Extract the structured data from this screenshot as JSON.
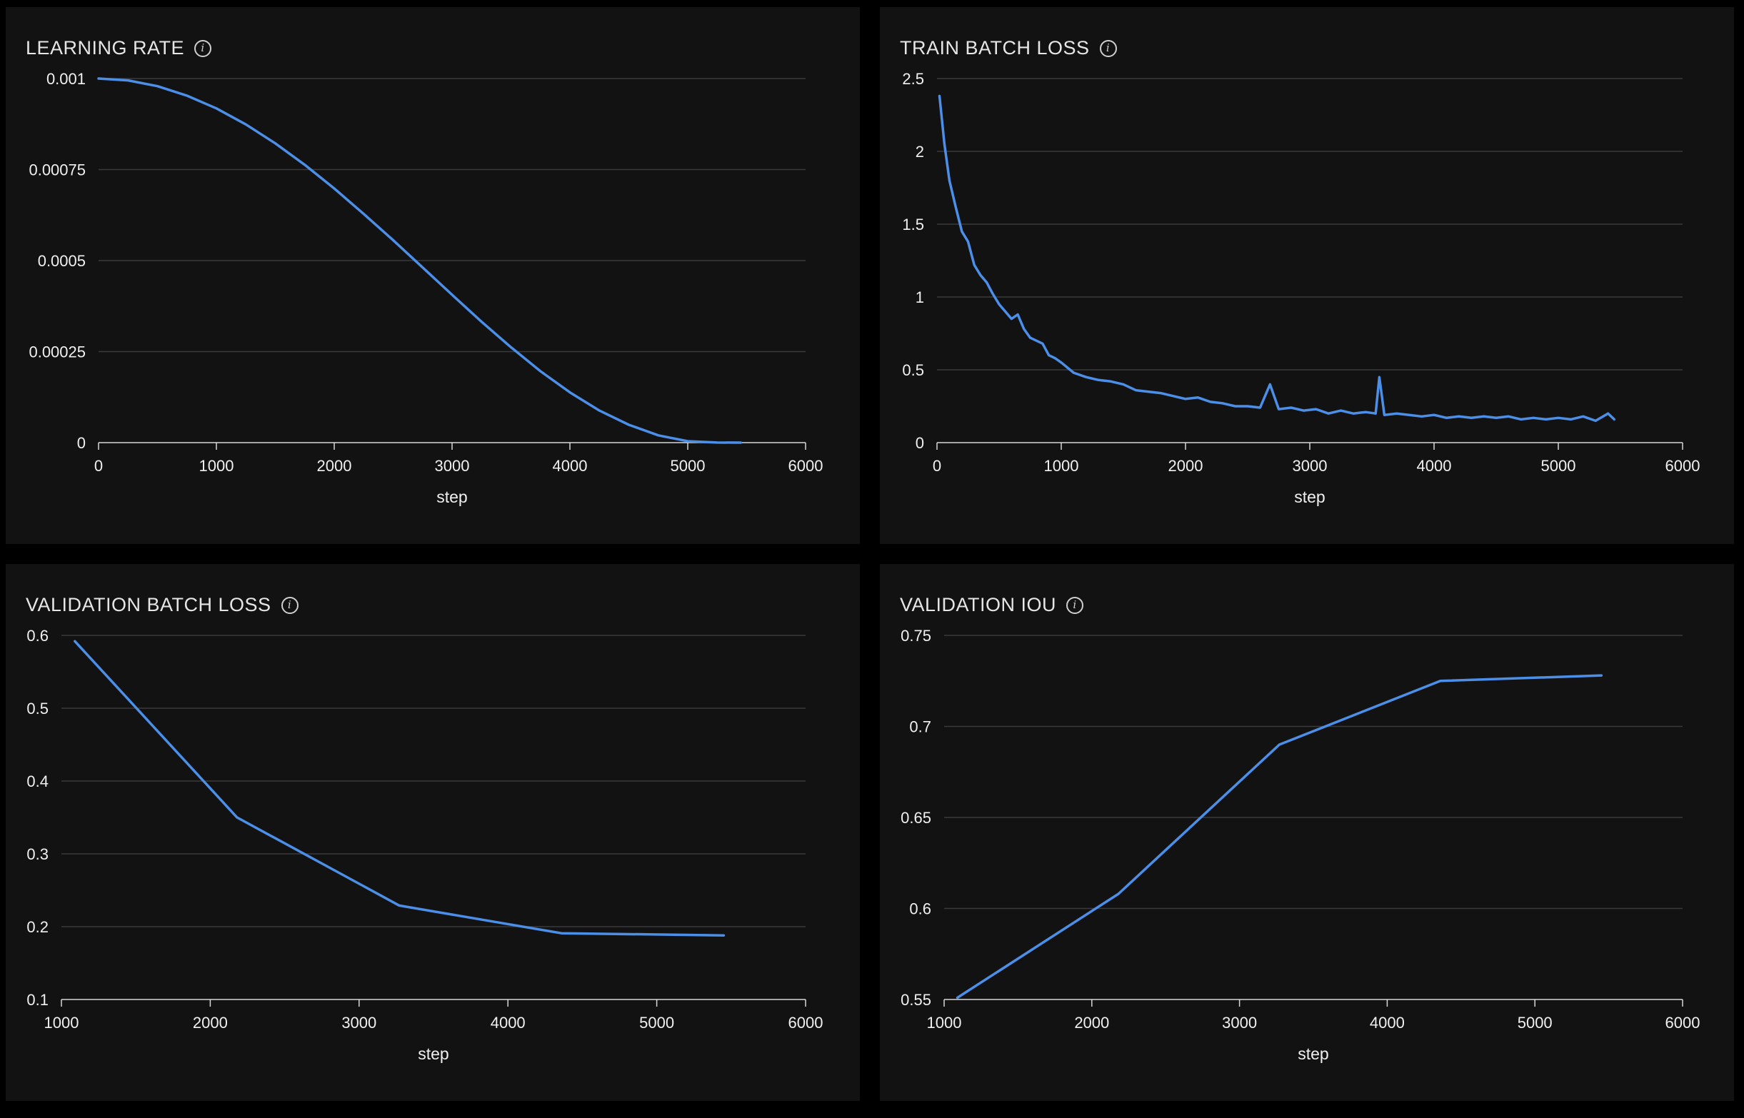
{
  "series_color": "#4b8fe8",
  "chart_data": [
    {
      "type": "line",
      "title": "LEARNING RATE",
      "xlabel": "step",
      "ylabel": "",
      "xlim": [
        0,
        6000
      ],
      "ylim": [
        0,
        0.001
      ],
      "xticks": [
        0,
        1000,
        2000,
        3000,
        4000,
        5000,
        6000
      ],
      "yticks": [
        0,
        0.00025,
        0.0005,
        0.00075,
        0.001
      ],
      "grid": true,
      "series": [
        {
          "x": [
            0,
            250,
            500,
            750,
            1000,
            1250,
            1500,
            1750,
            2000,
            2250,
            2500,
            2750,
            3000,
            3250,
            3500,
            3750,
            4000,
            4250,
            4500,
            4750,
            5000,
            5250,
            5450
          ],
          "y": [
            0.001,
            0.000995,
            0.000979,
            0.000953,
            0.000918,
            0.000874,
            0.000822,
            0.000763,
            0.000698,
            0.000628,
            0.000556,
            0.000481,
            0.000406,
            0.000332,
            0.000262,
            0.000196,
            0.000138,
            8.8e-05,
            4.9e-05,
            2e-05,
            4e-06,
            2e-07,
            0
          ]
        }
      ]
    },
    {
      "type": "line",
      "title": "TRAIN BATCH LOSS",
      "xlabel": "step",
      "ylabel": "",
      "xlim": [
        0,
        6000
      ],
      "ylim": [
        0,
        2.5
      ],
      "xticks": [
        0,
        1000,
        2000,
        3000,
        4000,
        5000,
        6000
      ],
      "yticks": [
        0,
        0.5,
        1,
        1.5,
        2,
        2.5
      ],
      "grid": true,
      "series": [
        {
          "x": [
            20,
            60,
            100,
            150,
            200,
            250,
            300,
            350,
            400,
            450,
            500,
            550,
            600,
            650,
            700,
            750,
            800,
            850,
            900,
            950,
            1000,
            1100,
            1200,
            1300,
            1400,
            1500,
            1600,
            1700,
            1800,
            1900,
            2000,
            2100,
            2200,
            2300,
            2400,
            2500,
            2600,
            2680,
            2750,
            2850,
            2950,
            3050,
            3150,
            3250,
            3350,
            3450,
            3530,
            3560,
            3600,
            3700,
            3800,
            3900,
            4000,
            4100,
            4200,
            4300,
            4400,
            4500,
            4600,
            4700,
            4800,
            4900,
            5000,
            5100,
            5200,
            5300,
            5400,
            5450
          ],
          "y": [
            2.38,
            2.05,
            1.8,
            1.62,
            1.45,
            1.38,
            1.22,
            1.15,
            1.1,
            1.02,
            0.95,
            0.9,
            0.85,
            0.88,
            0.78,
            0.72,
            0.7,
            0.68,
            0.6,
            0.58,
            0.55,
            0.48,
            0.45,
            0.43,
            0.42,
            0.4,
            0.36,
            0.35,
            0.34,
            0.32,
            0.3,
            0.31,
            0.28,
            0.27,
            0.25,
            0.25,
            0.24,
            0.4,
            0.23,
            0.24,
            0.22,
            0.23,
            0.2,
            0.22,
            0.2,
            0.21,
            0.2,
            0.45,
            0.19,
            0.2,
            0.19,
            0.18,
            0.19,
            0.17,
            0.18,
            0.17,
            0.18,
            0.17,
            0.18,
            0.16,
            0.17,
            0.16,
            0.17,
            0.16,
            0.18,
            0.15,
            0.2,
            0.16
          ]
        }
      ]
    },
    {
      "type": "line",
      "title": "VALIDATION BATCH LOSS",
      "xlabel": "step",
      "ylabel": "",
      "xlim": [
        1000,
        6000
      ],
      "ylim": [
        0.1,
        0.6
      ],
      "xticks": [
        1000,
        2000,
        3000,
        4000,
        5000,
        6000
      ],
      "yticks": [
        0.1,
        0.2,
        0.3,
        0.4,
        0.5,
        0.6
      ],
      "grid": true,
      "series": [
        {
          "x": [
            1090,
            2180,
            3270,
            4360,
            5450
          ],
          "y": [
            0.592,
            0.35,
            0.229,
            0.191,
            0.188
          ]
        }
      ]
    },
    {
      "type": "line",
      "title": "VALIDATION IOU",
      "xlabel": "step",
      "ylabel": "",
      "xlim": [
        1000,
        6000
      ],
      "ylim": [
        0.55,
        0.75
      ],
      "xticks": [
        1000,
        2000,
        3000,
        4000,
        5000,
        6000
      ],
      "yticks": [
        0.55,
        0.6,
        0.65,
        0.7,
        0.75
      ],
      "grid": true,
      "series": [
        {
          "x": [
            1090,
            2180,
            3270,
            4360,
            5450
          ],
          "y": [
            0.551,
            0.608,
            0.69,
            0.725,
            0.728
          ]
        }
      ]
    }
  ]
}
